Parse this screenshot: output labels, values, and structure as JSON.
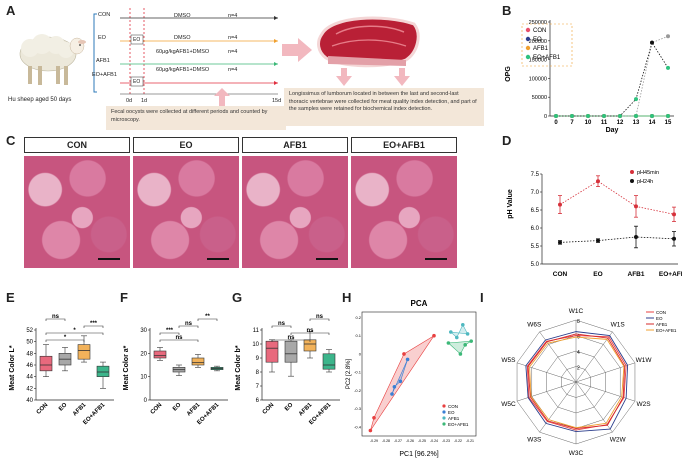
{
  "panel_letters": {
    "a": "A",
    "b": "B",
    "c": "C",
    "d": "D",
    "e": "E",
    "f": "F",
    "g": "G",
    "h": "H",
    "i": "I"
  },
  "panel_a": {
    "sheep_caption": "Hu sheep aged 50 days",
    "groups": [
      {
        "name": "CON",
        "treatment": "DMSO",
        "n": "n=4"
      },
      {
        "name": "EO",
        "treatment": "DMSO",
        "n": "n=4",
        "extra": "EO"
      },
      {
        "name": "AFB1",
        "treatment": "60μg/kgAFB1+DMSO",
        "n": "n=4"
      },
      {
        "name": "EO+AFB1",
        "treatment": "60μg/kgAFB1+DMSO",
        "n": "n=4",
        "extra": "EO"
      }
    ],
    "day_0": "0d",
    "day_1": "1d",
    "day_15": "15d",
    "fecal_note": "Fecal oocysts were collected at different periods and counted by microscopy.",
    "meat_note": "Longissimus of lumborum located in between the last and second-last thoracic vertebrae were collected for meat quality index detection, and part of the samples were retained for biochemical index detection."
  },
  "panel_c": {
    "labels": [
      "CON",
      "EO",
      "AFB1",
      "EO+AFB1"
    ]
  },
  "chart_data": [
    {
      "id": "B",
      "type": "line",
      "title": "",
      "xlabel": "Day",
      "ylabel": "OPG",
      "categories": [
        "0",
        "7",
        "10",
        "11",
        "12",
        "13",
        "14",
        "15"
      ],
      "ylim": [
        0,
        250000
      ],
      "yticks": [
        "0",
        "50000",
        "100000",
        "150000",
        "200000",
        "250000"
      ],
      "series": [
        {
          "name": "CON",
          "color": "#e8506a",
          "values": [
            0,
            0,
            0,
            0,
            0,
            0,
            0,
            0
          ]
        },
        {
          "name": "EO",
          "color": "#2c3e8c",
          "values": [
            0,
            0,
            0,
            0,
            0,
            0,
            0,
            0
          ]
        },
        {
          "name": "AFB1",
          "color": "#f0a030",
          "values": [
            0,
            0,
            0,
            0,
            0,
            0,
            0,
            0
          ]
        },
        {
          "name": "EO+AFB1",
          "color": "#2ec27e",
          "values": [
            0,
            0,
            0,
            0,
            0,
            0,
            0,
            0
          ]
        },
        {
          "name": "AFB1 (dotted)",
          "color": "#999999",
          "values": [
            0,
            0,
            0,
            0,
            0,
            0,
            195000,
            212000
          ]
        },
        {
          "name": "EO+AFB1 (dotted)",
          "color": "#111111",
          "values": [
            0,
            0,
            0,
            0,
            0,
            45000,
            195000,
            128000
          ]
        }
      ]
    },
    {
      "id": "D",
      "type": "line",
      "title": "",
      "xlabel": "",
      "ylabel": "pH Value",
      "categories": [
        "CON",
        "EO",
        "AFB1",
        "EO+AFB1"
      ],
      "ylim": [
        5.0,
        7.5
      ],
      "yticks": [
        "5.0",
        "5.5",
        "6.0",
        "6.5",
        "7.0",
        "7.5"
      ],
      "series": [
        {
          "name": "pH45min",
          "color": "#d6303a",
          "values": [
            6.65,
            7.3,
            6.6,
            6.38
          ],
          "err": [
            0.25,
            0.15,
            0.3,
            0.2
          ]
        },
        {
          "name": "pH24h",
          "color": "#111111",
          "values": [
            5.6,
            5.65,
            5.75,
            5.7
          ],
          "err": [
            0.05,
            0.05,
            0.3,
            0.2
          ]
        }
      ],
      "legend": [
        "pH45min",
        "pH24h"
      ]
    },
    {
      "id": "E",
      "type": "box",
      "ylabel": "Meat Color L*",
      "categories": [
        "CON",
        "EO",
        "AFB1",
        "EO+AFB1"
      ],
      "colors": [
        "#e8697d",
        "#a8a8a8",
        "#f2b25a",
        "#3cb58b"
      ],
      "ylim": [
        40,
        52
      ],
      "yticks": [
        "40",
        "42",
        "44",
        "46",
        "48",
        "50",
        "52"
      ],
      "boxes": [
        {
          "min": 44,
          "q1": 45,
          "median": 46,
          "q3": 47.5,
          "max": 49.5
        },
        {
          "min": 45,
          "q1": 46,
          "median": 47,
          "q3": 48,
          "max": 49
        },
        {
          "min": 46.5,
          "q1": 47,
          "median": 48.5,
          "q3": 49.5,
          "max": 51
        },
        {
          "min": 42,
          "q1": 44,
          "median": 44.8,
          "q3": 45.8,
          "max": 46.5
        }
      ],
      "sig": [
        {
          "from": 0,
          "to": 2,
          "label": "*"
        },
        {
          "from": 0,
          "to": 3,
          "label": "*"
        },
        {
          "from": 2,
          "to": 3,
          "label": "***"
        },
        {
          "from": 0,
          "to": 1,
          "label": "ns"
        }
      ]
    },
    {
      "id": "F",
      "type": "box",
      "ylabel": "Meat Color a*",
      "categories": [
        "CON",
        "EO",
        "AFB1",
        "EO+AFB1"
      ],
      "colors": [
        "#e8697d",
        "#a8a8a8",
        "#f2b25a",
        "#3cb58b"
      ],
      "ylim": [
        0,
        30
      ],
      "yticks": [
        "0",
        "10",
        "20",
        "30"
      ],
      "boxes": [
        {
          "min": 17,
          "q1": 18,
          "median": 19,
          "q3": 21,
          "max": 22.5
        },
        {
          "min": 10.5,
          "q1": 12,
          "median": 13,
          "q3": 14,
          "max": 15
        },
        {
          "min": 14,
          "q1": 15,
          "median": 16,
          "q3": 18,
          "max": 19.5
        },
        {
          "min": 12.5,
          "q1": 13,
          "median": 13.5,
          "q3": 14,
          "max": 14.5
        }
      ],
      "sig": [
        {
          "from": 0,
          "to": 2,
          "label": "ns"
        },
        {
          "from": 0,
          "to": 1,
          "label": "***"
        },
        {
          "from": 1,
          "to": 2,
          "label": "ns"
        },
        {
          "from": 2,
          "to": 3,
          "label": "**"
        }
      ]
    },
    {
      "id": "G",
      "type": "box",
      "ylabel": "Meat Color b*",
      "categories": [
        "CON",
        "EO",
        "AFB1",
        "EO+AFB1"
      ],
      "colors": [
        "#e8697d",
        "#a8a8a8",
        "#f2b25a",
        "#3cb58b"
      ],
      "ylim": [
        6,
        11
      ],
      "yticks": [
        "6",
        "7",
        "8",
        "9",
        "10",
        "11"
      ],
      "boxes": [
        {
          "min": 8,
          "q1": 8.7,
          "median": 9.7,
          "q3": 10.2,
          "max": 10.3
        },
        {
          "min": 7.7,
          "q1": 8.7,
          "median": 9.3,
          "q3": 10.2,
          "max": 10.3
        },
        {
          "min": 9,
          "q1": 9.5,
          "median": 10,
          "q3": 10.3,
          "max": 10.9
        },
        {
          "min": 8,
          "q1": 8.2,
          "median": 8.5,
          "q3": 9.3,
          "max": 9.6
        }
      ],
      "sig": [
        {
          "from": 0,
          "to": 2,
          "label": "ns"
        },
        {
          "from": 1,
          "to": 3,
          "label": "ns"
        },
        {
          "from": 0,
          "to": 1,
          "label": "ns"
        },
        {
          "from": 2,
          "to": 3,
          "label": "ns"
        }
      ]
    },
    {
      "id": "H",
      "type": "scatter",
      "title": "PCA",
      "xlabel": "PC1 [96.2%]",
      "ylabel": "PC2 [2.8%]",
      "xlim": [
        -0.3,
        -0.205
      ],
      "ylim": [
        -0.45,
        0.23
      ],
      "xticks": [
        "-0.29",
        "-0.28",
        "-0.27",
        "-0.26",
        "-0.25",
        "-0.24",
        "-0.23",
        "-0.22",
        "-0.21"
      ],
      "yticks": [
        "-0.4",
        "-0.3",
        "-0.2",
        "-0.1",
        "0",
        "0.1",
        "0.2"
      ],
      "series": [
        {
          "name": "CON",
          "color": "#e84040",
          "points": [
            [
              -0.293,
              -0.42
            ],
            [
              -0.29,
              -0.35
            ],
            [
              -0.265,
              0.0
            ],
            [
              -0.24,
              0.1
            ]
          ]
        },
        {
          "name": "EO",
          "color": "#3a7fd4",
          "points": [
            [
              -0.275,
              -0.22
            ],
            [
              -0.273,
              -0.18
            ],
            [
              -0.268,
              -0.15
            ],
            [
              -0.262,
              -0.03
            ]
          ]
        },
        {
          "name": "AFB1",
          "color": "#4eb8c0",
          "points": [
            [
              -0.226,
              0.12
            ],
            [
              -0.221,
              0.09
            ],
            [
              -0.216,
              0.16
            ],
            [
              -0.212,
              0.11
            ]
          ]
        },
        {
          "name": "EO+AFB1",
          "color": "#3cb878",
          "points": [
            [
              -0.228,
              0.06
            ],
            [
              -0.218,
              0.0
            ],
            [
              -0.214,
              0.05
            ],
            [
              -0.209,
              0.07
            ]
          ]
        }
      ]
    },
    {
      "id": "I",
      "type": "radar",
      "axes": [
        "W1C",
        "W1S",
        "W1W",
        "W2S",
        "W2W",
        "W3C",
        "W3S",
        "W5C",
        "W5S",
        "W6S"
      ],
      "rmax": 8,
      "rings": [
        "2",
        "4",
        "6",
        "8"
      ],
      "series": [
        {
          "name": "CON",
          "color": "#e84040",
          "values": [
            6,
            7.2,
            6.8,
            6.5,
            6.8,
            6.2,
            6.3,
            6.4,
            6.6,
            6.5
          ]
        },
        {
          "name": "EO",
          "color": "#2c3e8c",
          "values": [
            6.5,
            7.4,
            7.0,
            6.8,
            7.5,
            6.4,
            6.6,
            6.5,
            6.8,
            6.7
          ]
        },
        {
          "name": "AFB1",
          "color": "#d62828",
          "values": [
            6.2,
            7.0,
            6.6,
            6.4,
            6.9,
            6.0,
            6.2,
            6.2,
            6.5,
            6.4
          ]
        },
        {
          "name": "EO+AFB1",
          "color": "#f0a030",
          "values": [
            5.8,
            6.8,
            6.5,
            6.2,
            6.6,
            5.9,
            6.0,
            6.1,
            6.3,
            6.2
          ]
        }
      ]
    }
  ]
}
